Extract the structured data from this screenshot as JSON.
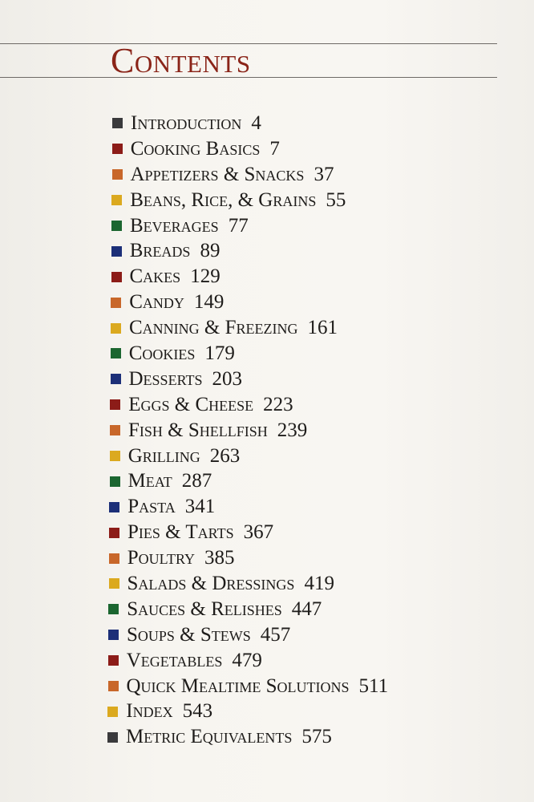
{
  "title": "Contents",
  "colors": {
    "gray": "#3a3a3c",
    "red": "#8c1c18",
    "orange": "#c8672a",
    "yellow": "#dba91f",
    "green": "#1b6630",
    "blue": "#1c2f78",
    "title": "#8a2418"
  },
  "items": [
    {
      "label": "Introduction",
      "page": "4",
      "color": "gray"
    },
    {
      "label": "Cooking Basics",
      "page": "7",
      "color": "red"
    },
    {
      "label": "Appetizers & Snacks",
      "page": "37",
      "color": "orange"
    },
    {
      "label": "Beans, Rice, & Grains",
      "page": "55",
      "color": "yellow"
    },
    {
      "label": "Beverages",
      "page": "77",
      "color": "green"
    },
    {
      "label": "Breads",
      "page": "89",
      "color": "blue"
    },
    {
      "label": "Cakes",
      "page": "129",
      "color": "red"
    },
    {
      "label": "Candy",
      "page": "149",
      "color": "orange"
    },
    {
      "label": "Canning & Freezing",
      "page": "161",
      "color": "yellow"
    },
    {
      "label": "Cookies",
      "page": "179",
      "color": "green"
    },
    {
      "label": "Desserts",
      "page": "203",
      "color": "blue"
    },
    {
      "label": "Eggs & Cheese",
      "page": "223",
      "color": "red"
    },
    {
      "label": "Fish & Shellfish",
      "page": "239",
      "color": "orange"
    },
    {
      "label": "Grilling",
      "page": "263",
      "color": "yellow"
    },
    {
      "label": "Meat",
      "page": "287",
      "color": "green"
    },
    {
      "label": "Pasta",
      "page": "341",
      "color": "blue"
    },
    {
      "label": "Pies & Tarts",
      "page": "367",
      "color": "red"
    },
    {
      "label": "Poultry",
      "page": "385",
      "color": "orange"
    },
    {
      "label": "Salads & Dressings",
      "page": "419",
      "color": "yellow"
    },
    {
      "label": "Sauces & Relishes",
      "page": "447",
      "color": "green"
    },
    {
      "label": "Soups & Stews",
      "page": "457",
      "color": "blue"
    },
    {
      "label": "Vegetables",
      "page": "479",
      "color": "red"
    },
    {
      "label": "Quick Mealtime Solutions",
      "page": "511",
      "color": "orange"
    },
    {
      "label": "Index",
      "page": "543",
      "color": "yellow"
    },
    {
      "label": "Metric Equivalents",
      "page": "575",
      "color": "gray"
    }
  ]
}
